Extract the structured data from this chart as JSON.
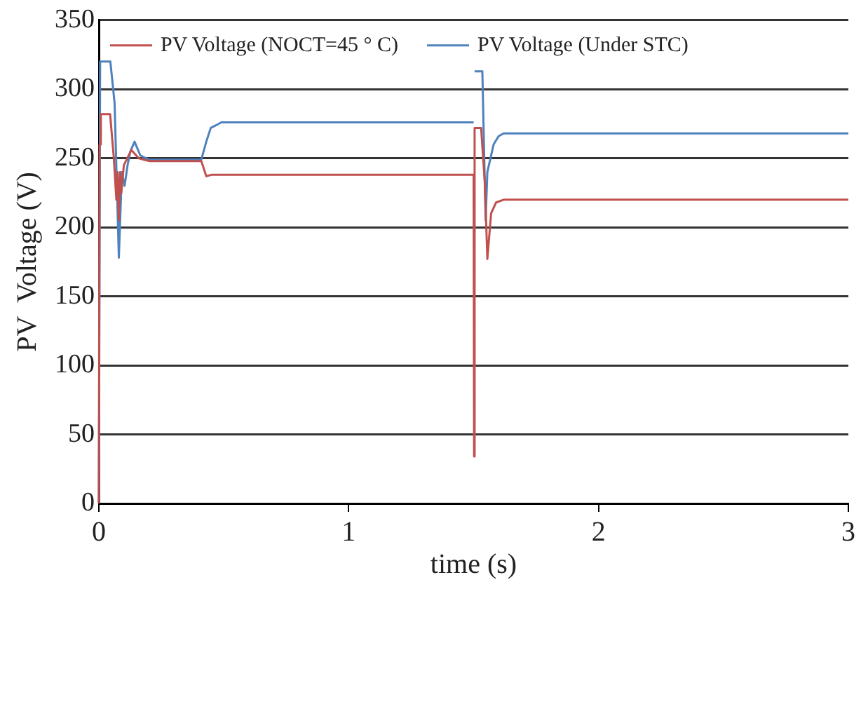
{
  "chart_data": {
    "type": "line",
    "xlabel": "time (s)",
    "ylabel": "PV  Voltage (V)",
    "xlim": [
      0,
      3
    ],
    "xticks": [
      0,
      1,
      2,
      3
    ],
    "ylim": [
      0,
      350
    ],
    "yticks": [
      0,
      50,
      100,
      150,
      200,
      250,
      300,
      350
    ],
    "grid": "y",
    "legend": "top left",
    "marker": "none",
    "line_style": "solid",
    "series": [
      {
        "name": "PV Voltage (NOCT=45 ° C)",
        "color": "#c0504d",
        "x": [
          0,
          0.003,
          0.008,
          0.045,
          0.06,
          0.07,
          0.075,
          0.08,
          0.085,
          0.09,
          0.1,
          0.13,
          0.16,
          0.2,
          0.41,
          0.43,
          0.45,
          1.5,
          1.502,
          1.504,
          1.53,
          1.545,
          1.555,
          1.57,
          1.59,
          1.62,
          3
        ],
        "values": [
          0,
          260,
          282,
          282,
          250,
          220,
          240,
          205,
          240,
          225,
          245,
          256,
          250,
          248,
          248,
          237,
          238,
          238,
          34,
          272,
          272,
          232,
          177,
          210,
          218,
          220,
          220
        ]
      },
      {
        "name": "PV Voltage (Under STC)",
        "color": "#4f81bd",
        "x": [
          0,
          0.005,
          0.046,
          0.063,
          0.08,
          0.092,
          0.103,
          0.115,
          0.126,
          0.143,
          0.166,
          0.2,
          0.41,
          0.43,
          0.448,
          0.47,
          0.49,
          1.5,
          1.502,
          1.504,
          1.535,
          1.548,
          1.555,
          1.565,
          1.58,
          1.6,
          1.62,
          3
        ],
        "values": [
          0,
          320,
          320,
          290,
          178,
          240,
          230,
          245,
          255,
          262,
          252,
          249,
          249,
          262,
          272,
          274,
          276,
          276,
          null,
          313,
          313,
          205,
          240,
          248,
          260,
          266,
          268,
          268
        ]
      }
    ]
  }
}
